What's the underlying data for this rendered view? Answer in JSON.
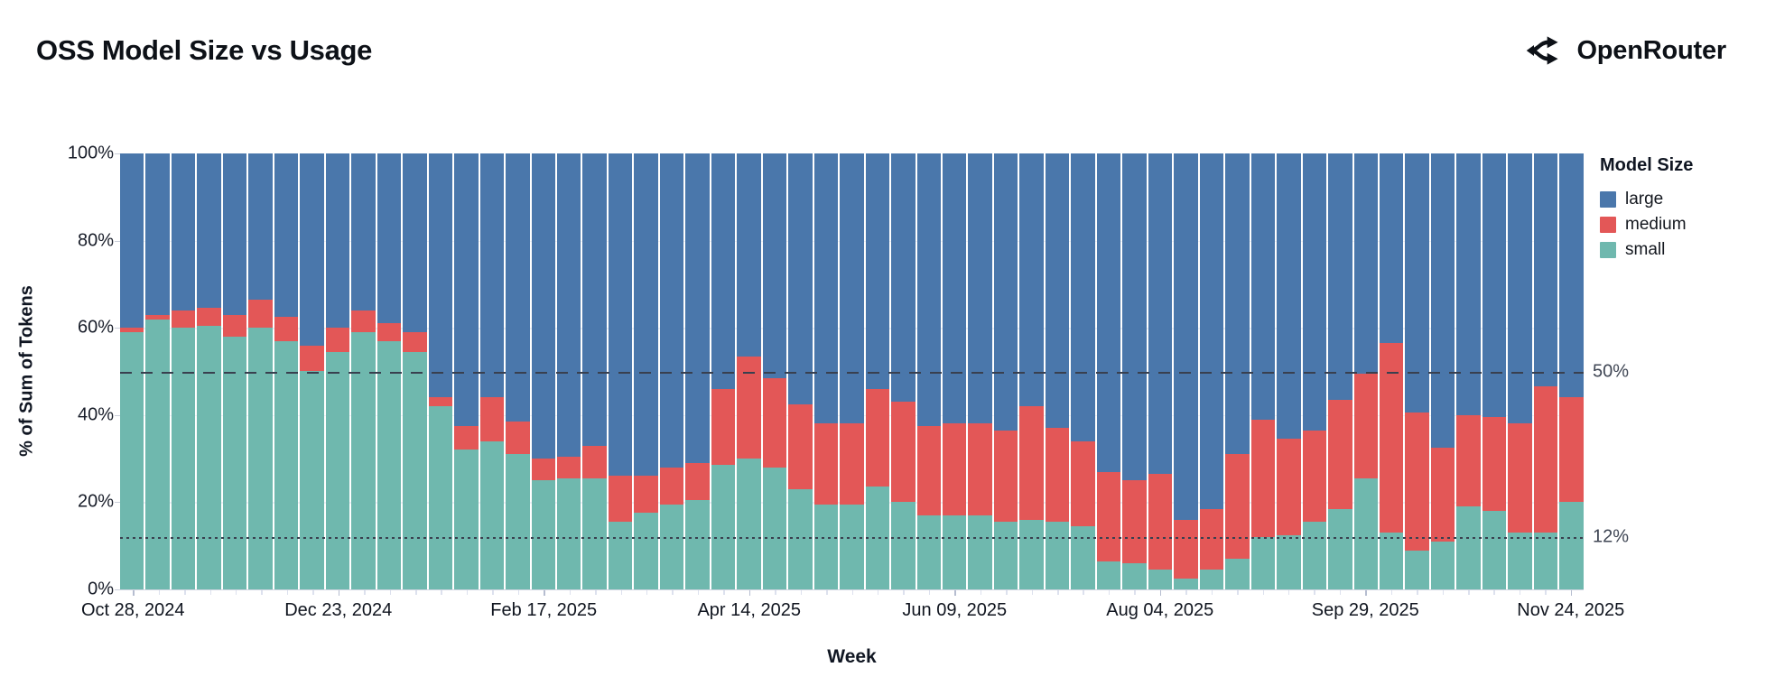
{
  "header": {
    "brand": "OpenRouter"
  },
  "chart_data": {
    "type": "bar",
    "stacked": true,
    "title": "OSS Model Size vs Usage",
    "xlabel": "Week",
    "ylabel": "% of Sum of Tokens",
    "ylim": [
      0,
      100
    ],
    "grid": true,
    "y_ticks": [
      "0%",
      "20%",
      "40%",
      "60%",
      "80%",
      "100%"
    ],
    "x_tick_labels": [
      "Oct 28, 2024",
      "Dec 23, 2024",
      "Feb 17, 2025",
      "Apr 14, 2025",
      "Jun 09, 2025",
      "Aug 04, 2025",
      "Sep 29, 2025",
      "Nov 24, 2025"
    ],
    "x_tick_bar_indices": [
      0,
      8,
      16,
      24,
      32,
      40,
      48,
      56
    ],
    "n_bars": 57,
    "x_unit": "week",
    "legend_title": "Model Size",
    "legend_position": "right",
    "stack_order_bottom_to_top": [
      "small",
      "medium",
      "large"
    ],
    "series": [
      {
        "name": "large",
        "color": "#4a77ab",
        "values": [
          40,
          37,
          36,
          35.5,
          37,
          33.5,
          37.5,
          44,
          40,
          36,
          39,
          41,
          56,
          62.5,
          56,
          61.5,
          70,
          69.5,
          67,
          74,
          74,
          72,
          71,
          54,
          46.5,
          51.5,
          57.5,
          62,
          62,
          54,
          57,
          62.5,
          62,
          62,
          63.5,
          58,
          63,
          66,
          73,
          75,
          73.5,
          84,
          81.5,
          69,
          61,
          65.5,
          63.5,
          56.5,
          50.5,
          43.5,
          59.5,
          67.5,
          60,
          60.5,
          62,
          53.5,
          56
        ]
      },
      {
        "name": "medium",
        "color": "#e35757",
        "values": [
          1,
          1,
          4,
          4,
          5,
          6.5,
          5.5,
          6,
          5.5,
          5,
          4,
          4.5,
          2,
          5.5,
          10,
          7.5,
          5,
          5,
          7.5,
          10.5,
          8.5,
          8.5,
          8.5,
          17.5,
          23.5,
          20.5,
          19.5,
          18.5,
          18.5,
          22.5,
          23,
          20.5,
          21,
          21,
          21,
          26,
          21.5,
          19.5,
          20.5,
          19,
          22,
          13.5,
          14,
          24,
          27,
          22,
          21,
          25,
          24,
          43.5,
          31.5,
          21.5,
          21,
          21.5,
          25,
          33.5,
          24
        ]
      },
      {
        "name": "small",
        "color": "#6fb8ae",
        "values": [
          59,
          62,
          60,
          60.5,
          58,
          60,
          57,
          50,
          54.5,
          59,
          57,
          54.5,
          42,
          32,
          34,
          31,
          25,
          25.5,
          25.5,
          15.5,
          17.5,
          19.5,
          20.5,
          28.5,
          30,
          28,
          23,
          19.5,
          19.5,
          23.5,
          20,
          17,
          17,
          17,
          15.5,
          16,
          15.5,
          14.5,
          6.5,
          6,
          4.5,
          2.5,
          4.5,
          7,
          12,
          12.5,
          15.5,
          18.5,
          25.5,
          13,
          9,
          11,
          19,
          18,
          13,
          13,
          20
        ]
      }
    ],
    "reference_lines": [
      {
        "value": 50,
        "label": "50%",
        "style": "dashed"
      },
      {
        "value": 12,
        "label": "12%",
        "style": "dotted"
      }
    ]
  }
}
